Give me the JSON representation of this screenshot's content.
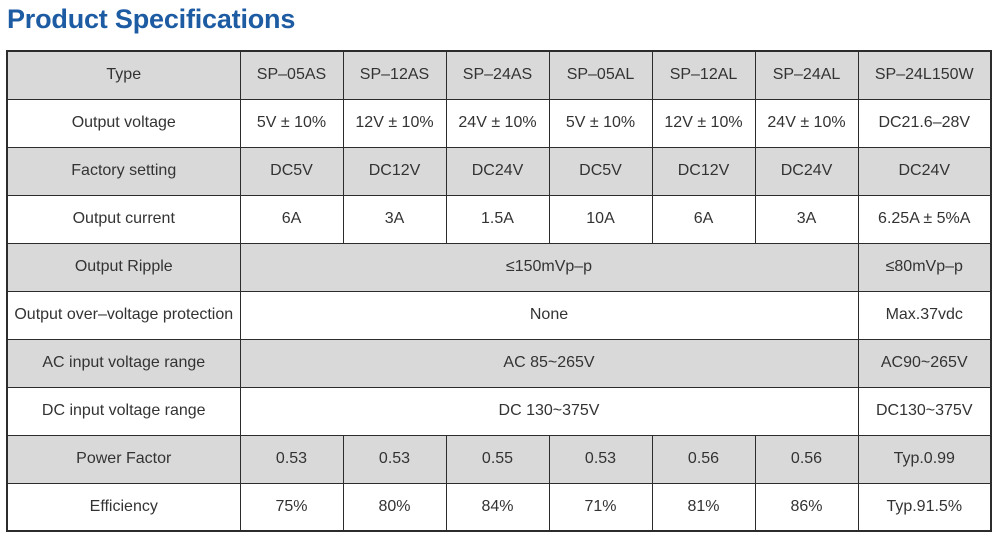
{
  "title": "Product Specifications",
  "columns": [
    "SP–05AS",
    "SP–12AS",
    "SP–24AS",
    "SP–05AL",
    "SP–12AL",
    "SP–24AL",
    "SP–24L150W"
  ],
  "header_label": "Type",
  "rows": {
    "output_voltage": {
      "label": "Output voltage",
      "values": [
        "5V ± 10%",
        "12V ± 10%",
        "24V ± 10%",
        "5V ± 10%",
        "12V ± 10%",
        "24V ± 10%",
        "DC21.6–28V"
      ]
    },
    "factory_setting": {
      "label": "Factory setting",
      "values": [
        "DC5V",
        "DC12V",
        "DC24V",
        "DC5V",
        "DC12V",
        "DC24V",
        "DC24V"
      ]
    },
    "output_current": {
      "label": "Output current",
      "values": [
        "6A",
        "3A",
        "1.5A",
        "10A",
        "6A",
        "3A",
        "6.25A ± 5%A"
      ]
    },
    "output_ripple": {
      "label": "Output Ripple",
      "shared": "≤150mVp–p",
      "last": "≤80mVp–p"
    },
    "ovp": {
      "label": "Output over–voltage protection",
      "shared": "None",
      "last": "Max.37vdc"
    },
    "ac_input": {
      "label": "AC input voltage range",
      "shared": "AC 85~265V",
      "last": "AC90~265V"
    },
    "dc_input": {
      "label": "DC input voltage range",
      "shared": "DC 130~375V",
      "last": "DC130~375V"
    },
    "power_factor": {
      "label": "Power Factor",
      "values": [
        "0.53",
        "0.53",
        "0.55",
        "0.53",
        "0.56",
        "0.56",
        "Typ.0.99"
      ]
    },
    "efficiency": {
      "label": "Efficiency",
      "values": [
        "75%",
        "80%",
        "84%",
        "71%",
        "81%",
        "86%",
        "Typ.91.5%"
      ]
    }
  }
}
